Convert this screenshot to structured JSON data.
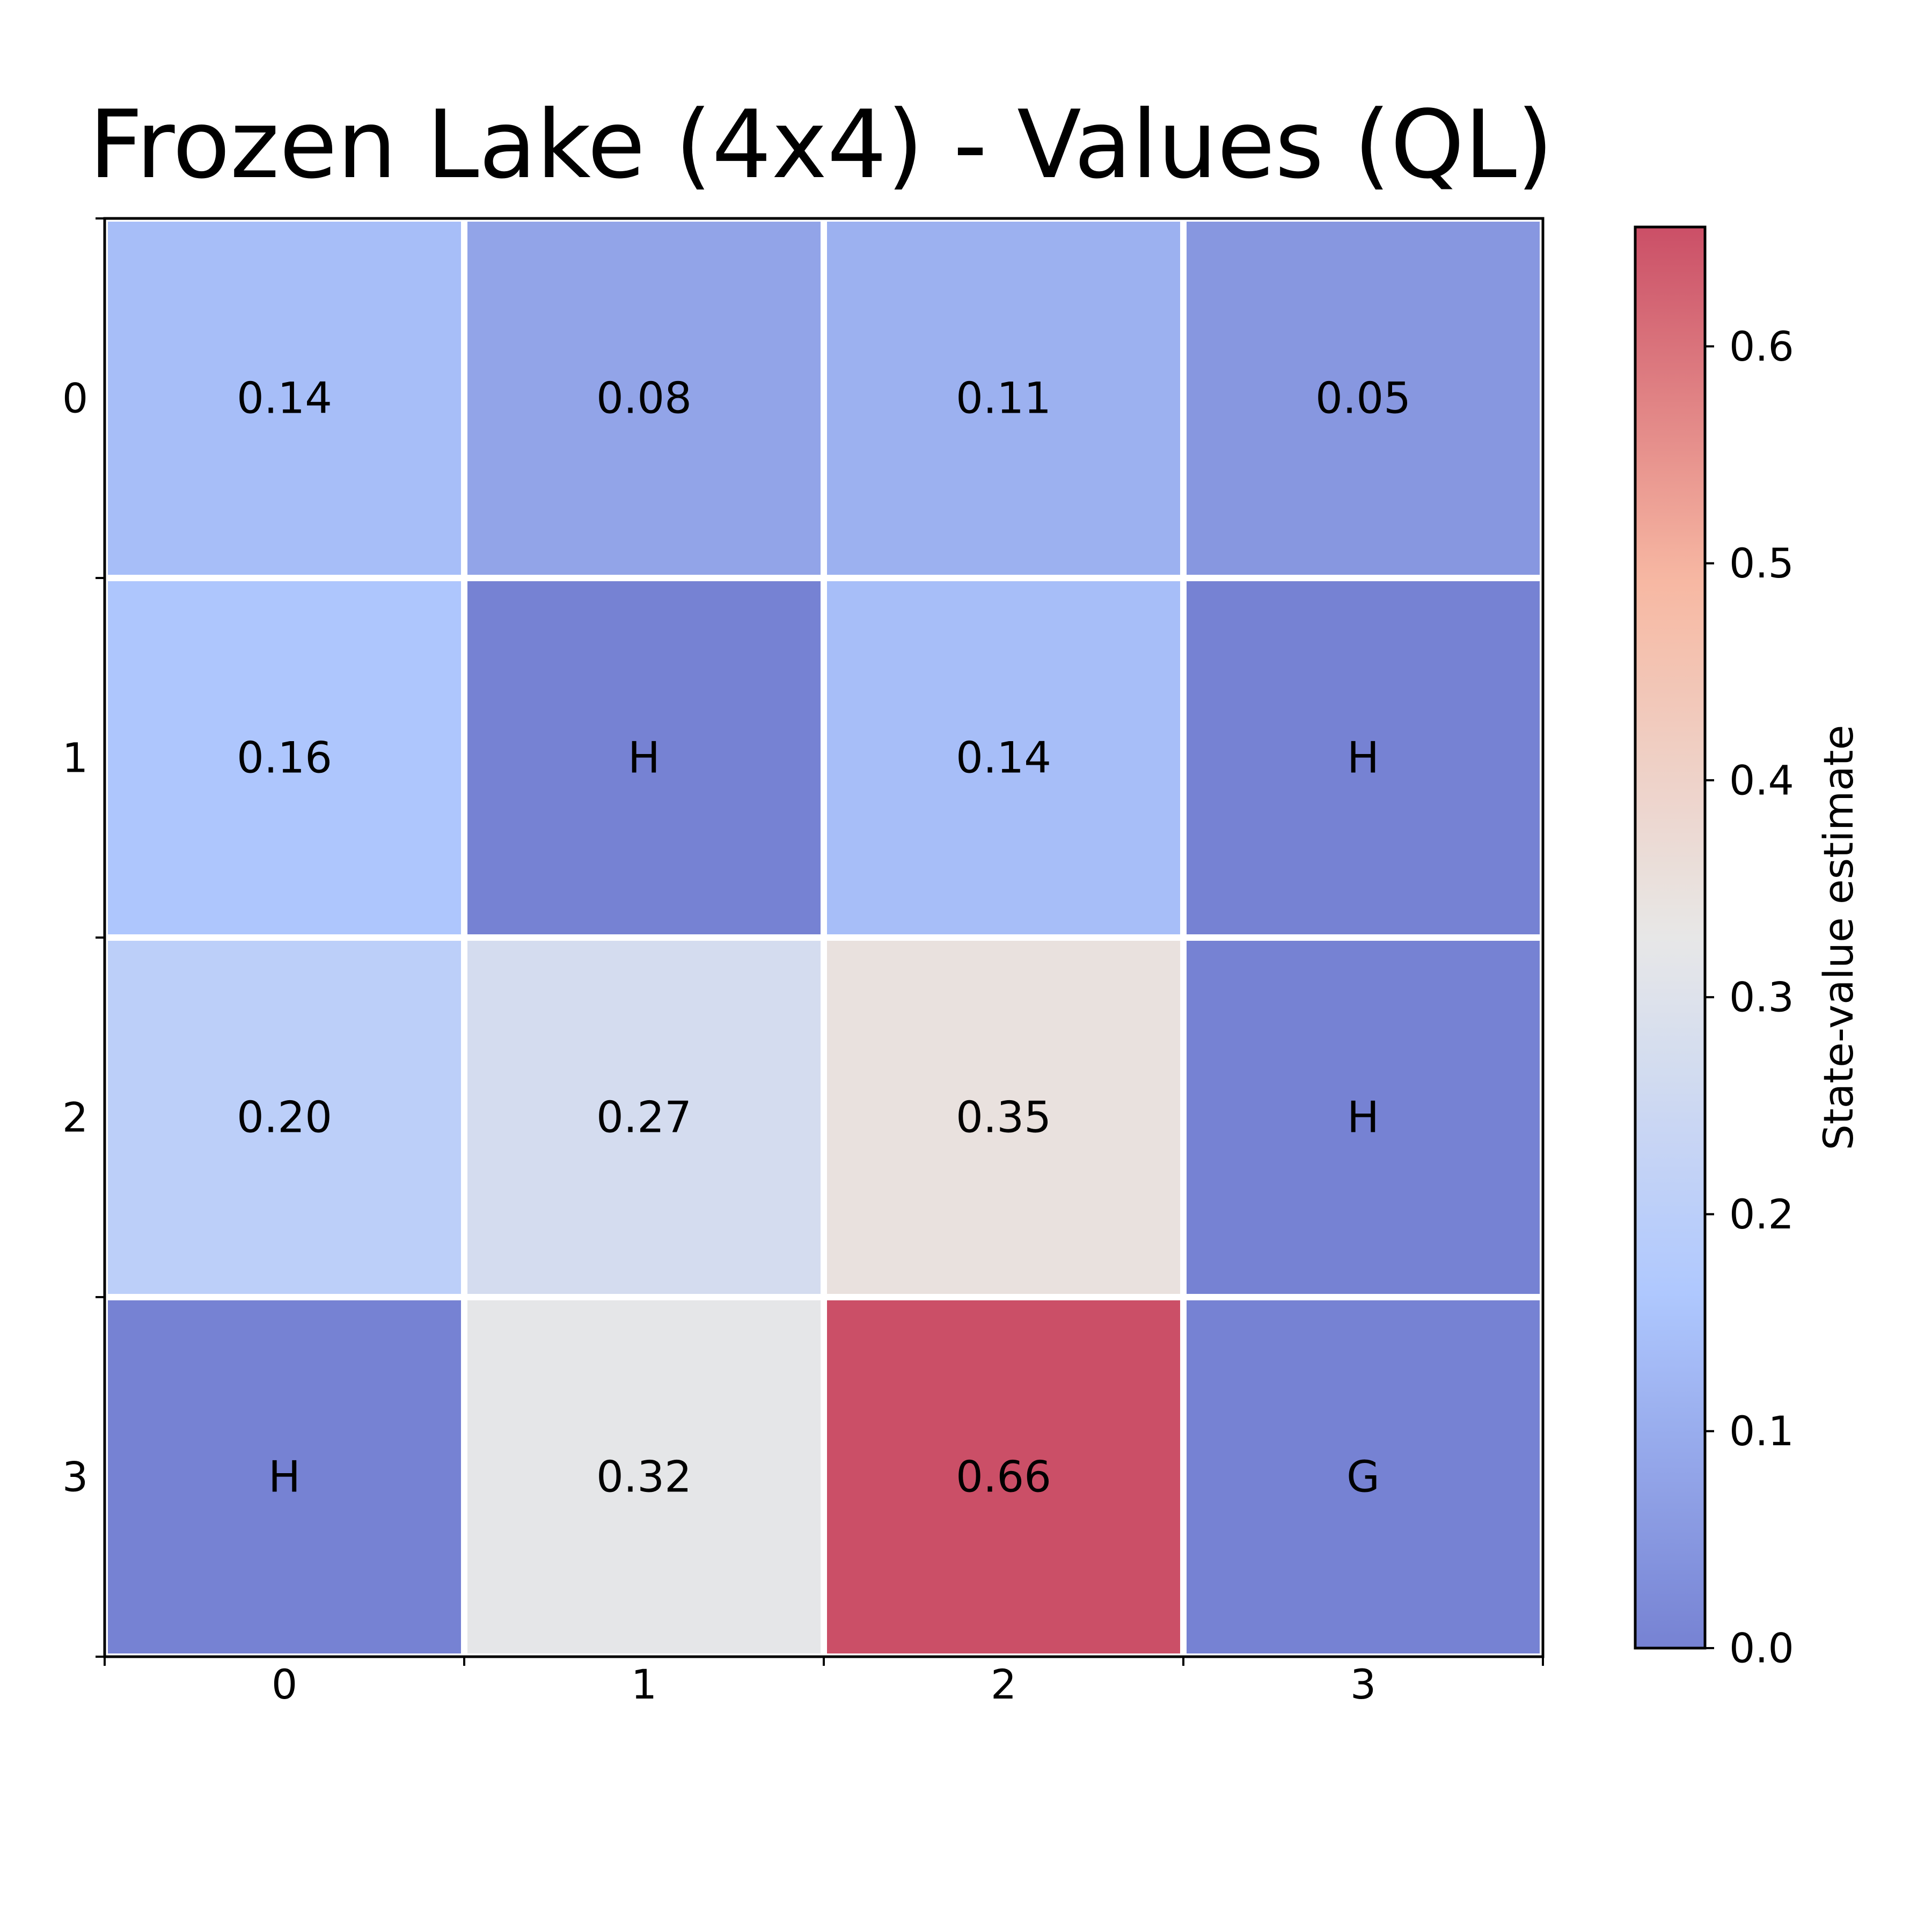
{
  "chart_data": {
    "type": "heatmap",
    "title": "Frozen Lake (4x4) - Values (QL)",
    "rows": [
      "0",
      "1",
      "2",
      "3"
    ],
    "columns": [
      "0",
      "1",
      "2",
      "3"
    ],
    "values": [
      [
        0.14,
        0.08,
        0.11,
        0.05
      ],
      [
        0.16,
        0.0,
        0.14,
        0.0
      ],
      [
        0.2,
        0.27,
        0.35,
        0.0
      ],
      [
        0.0,
        0.32,
        0.66,
        0.0
      ]
    ],
    "cell_labels": [
      [
        "0.14",
        "0.08",
        "0.11",
        "0.05"
      ],
      [
        "0.16",
        "H",
        "0.14",
        "H"
      ],
      [
        "0.20",
        "0.27",
        "0.35",
        "H"
      ],
      [
        "H",
        "0.32",
        "0.66",
        "G"
      ]
    ],
    "colormap": "coolwarm",
    "colormap_stops": [
      "#3b4cc0",
      "#8db0fe",
      "#dddddd",
      "#f49a7b",
      "#b40426"
    ],
    "cell_opacity": 0.7,
    "color_range": [
      0.0,
      0.655
    ],
    "grid_line_color": "#ffffff",
    "colorbar": {
      "label": "State-value estimate",
      "ticks": [
        "0.0",
        "0.1",
        "0.2",
        "0.3",
        "0.4",
        "0.5",
        "0.6"
      ],
      "tick_values": [
        0.0,
        0.1,
        0.2,
        0.3,
        0.4,
        0.5,
        0.6
      ]
    }
  }
}
